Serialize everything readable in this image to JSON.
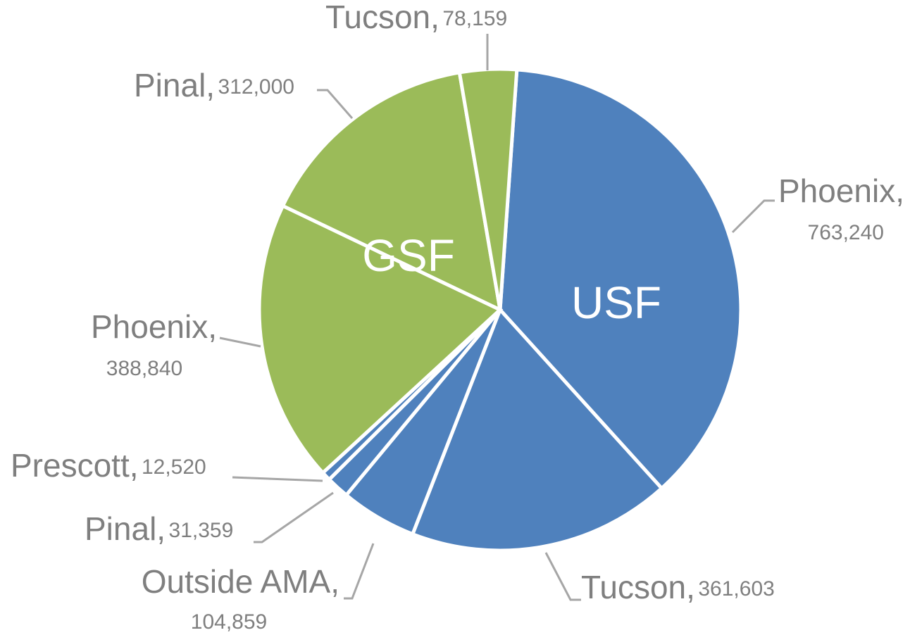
{
  "chart_data": {
    "type": "pie",
    "series": [
      {
        "name": "USF",
        "color": "#4f81bd",
        "categories": [
          "Phoenix,",
          "Tucson,",
          "Outside AMA,",
          "Pinal,",
          "Prescott,"
        ],
        "values": [
          763240,
          361603,
          104859,
          31359,
          12520
        ],
        "value_labels": [
          "763,240",
          "361,603",
          "104,859",
          "31,359",
          "12,520"
        ]
      },
      {
        "name": "GSF",
        "color": "#9bbb59",
        "categories": [
          "Phoenix,",
          "Pinal,",
          "Tucson,"
        ],
        "values": [
          388840,
          312000,
          78159
        ],
        "value_labels": [
          "388,840",
          "312,000",
          "78,159"
        ]
      }
    ]
  }
}
